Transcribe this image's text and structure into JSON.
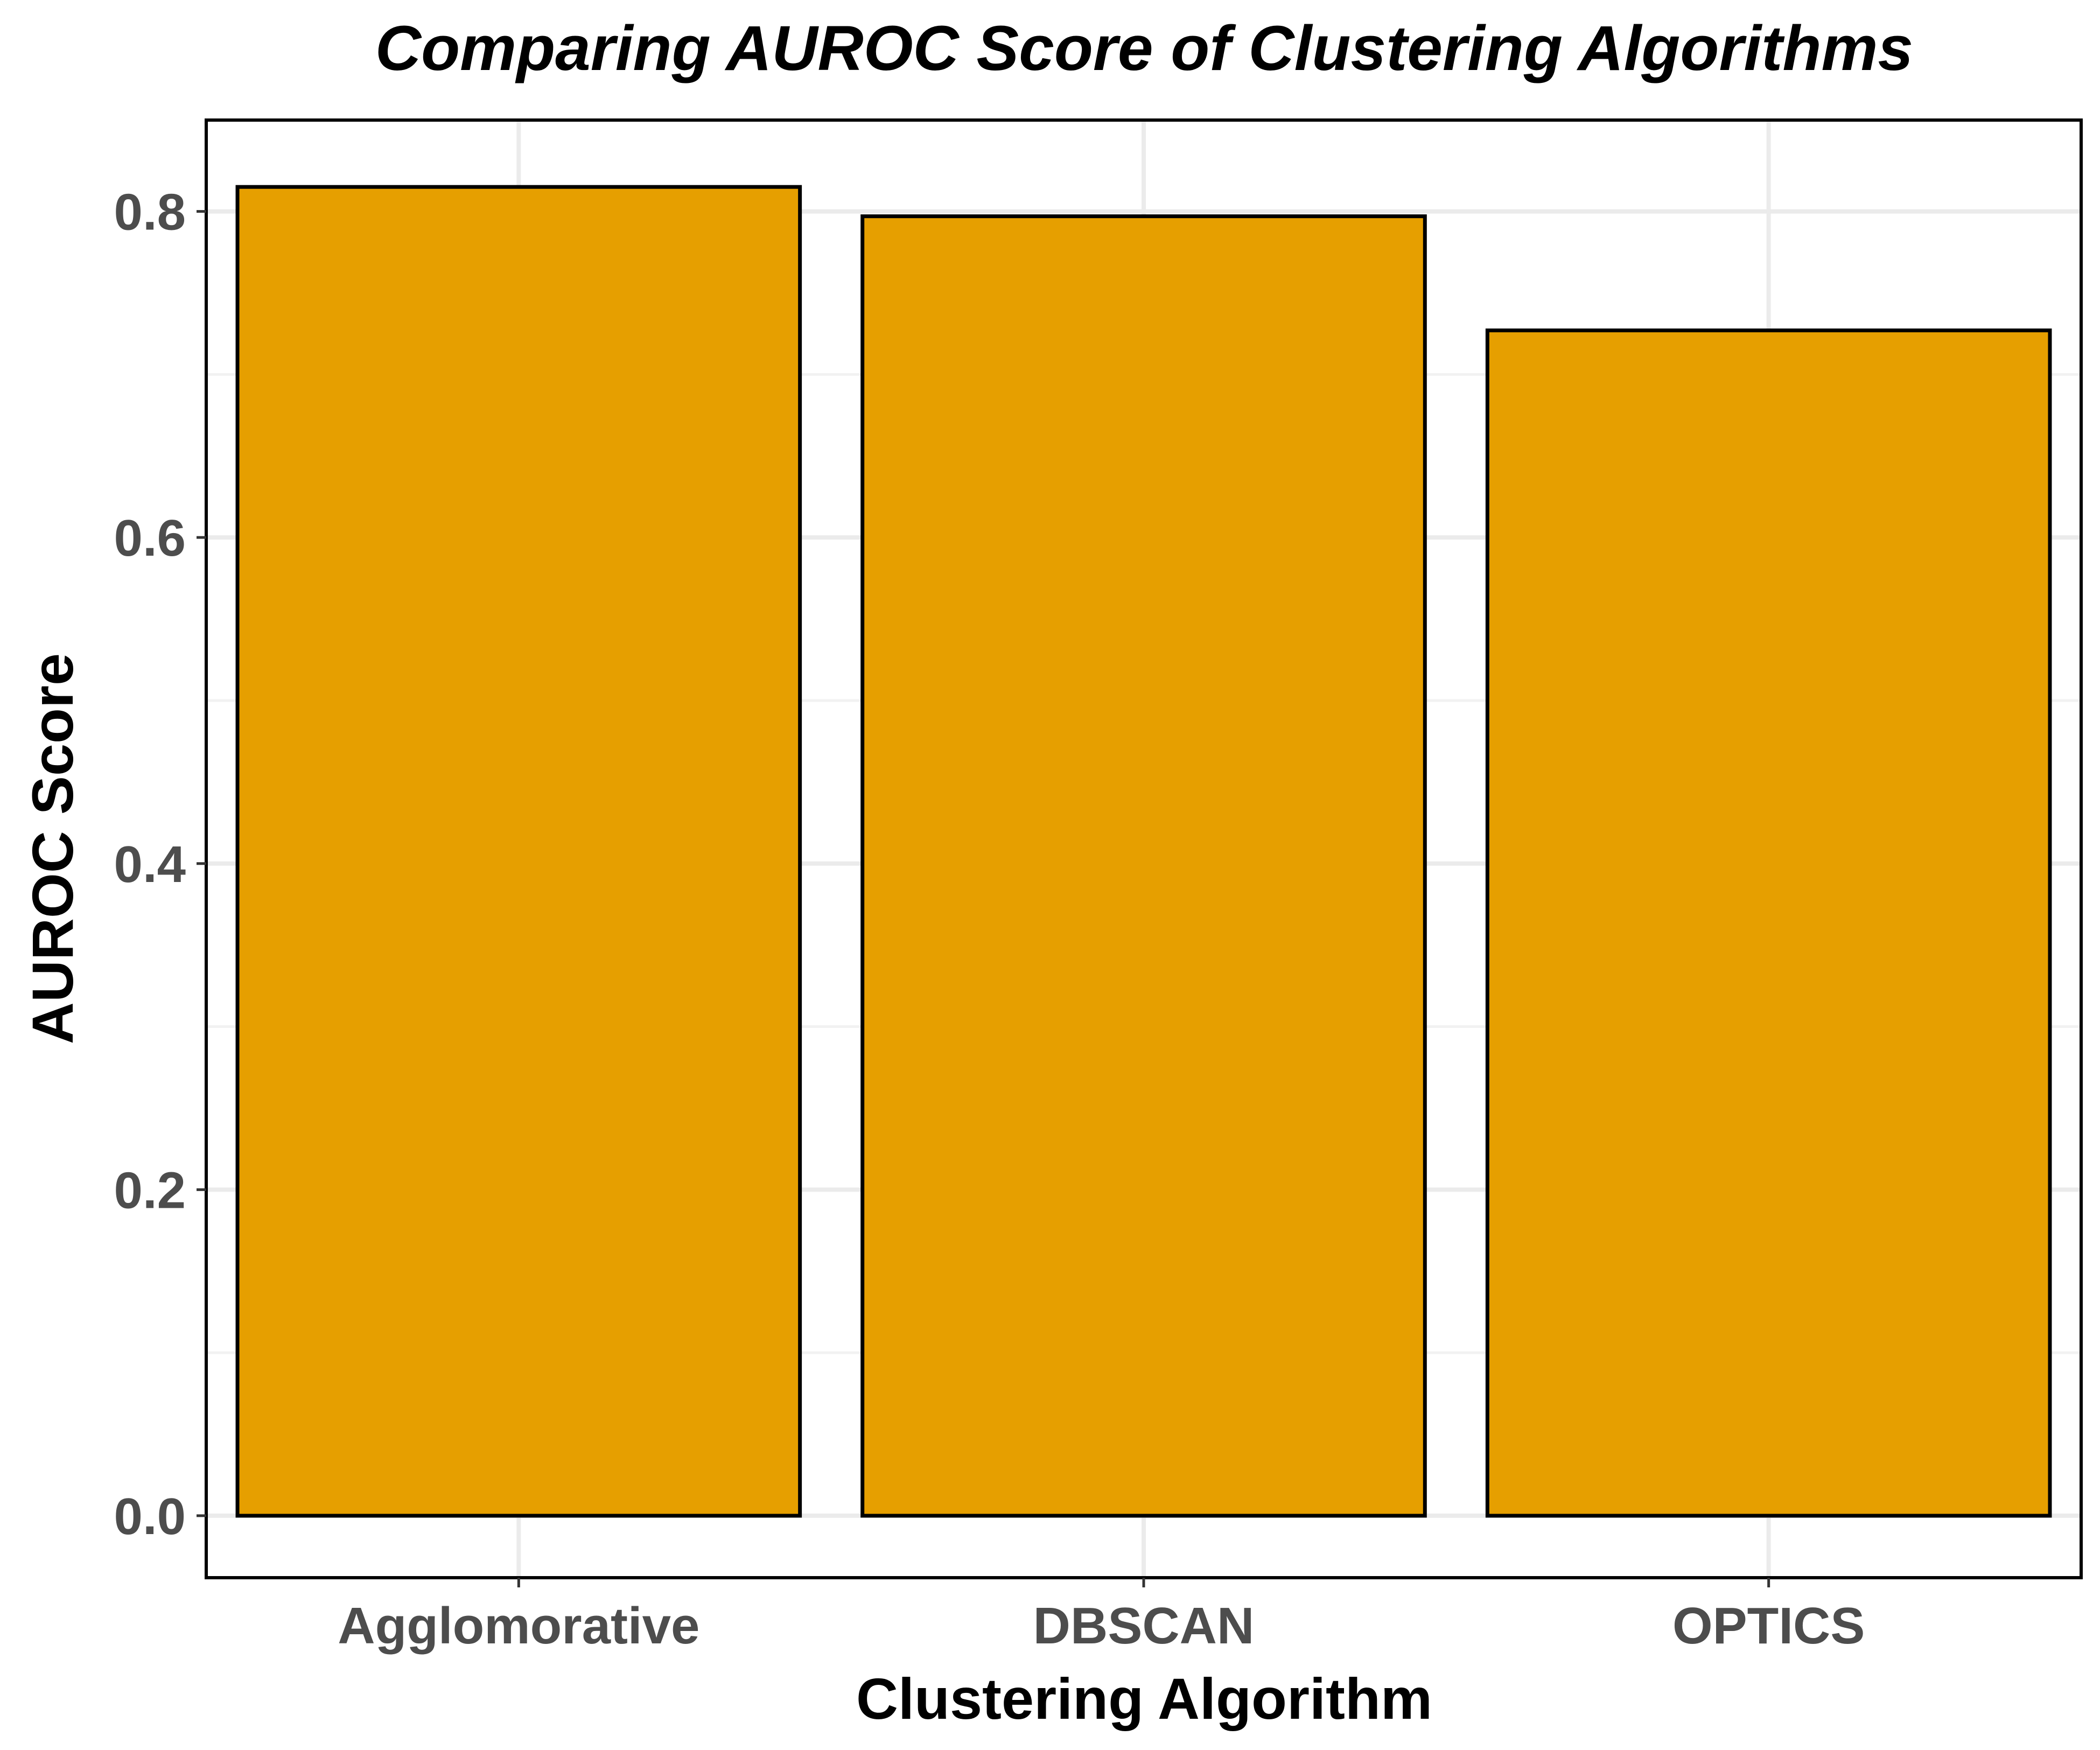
{
  "chart_data": {
    "type": "bar",
    "title": "Comparing AUROC Score of Clustering Algorithms",
    "xlabel": "Clustering Algorithm",
    "ylabel": "AUROC Score",
    "categories": [
      "Agglomorative",
      "DBSCAN",
      "OPTICS"
    ],
    "values": [
      0.815,
      0.797,
      0.727
    ],
    "ylim": [
      -0.038,
      0.856
    ],
    "yticks": [
      0.0,
      0.2,
      0.4,
      0.6,
      0.8
    ],
    "ytick_labels": [
      "0.0",
      "0.2",
      "0.4",
      "0.6",
      "0.8"
    ],
    "grid": true,
    "legend": "none",
    "colors": {
      "bar_fill": "#E69F00",
      "bar_stroke": "#000000",
      "grid_major": "#EBEBEB",
      "grid_minor": "#F2F2F2",
      "panel_border": "#000000"
    }
  }
}
